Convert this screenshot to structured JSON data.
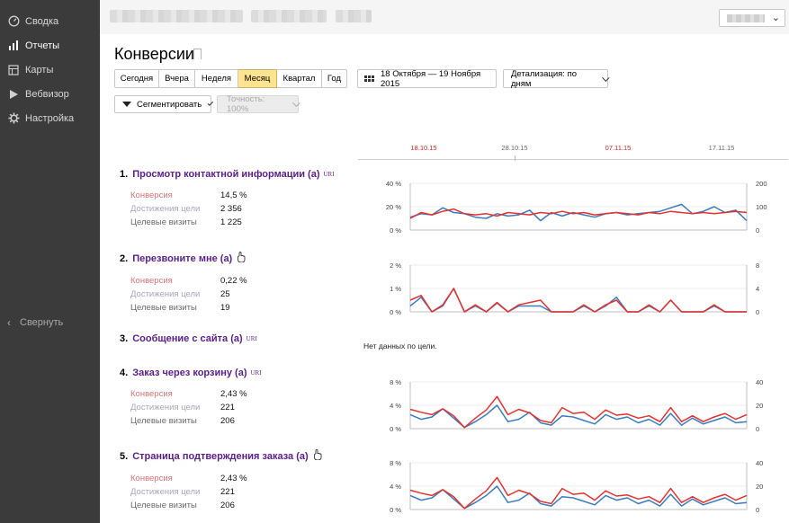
{
  "sidebar": {
    "items": [
      {
        "label": "Сводка",
        "icon": "gauge-icon"
      },
      {
        "label": "Отчеты",
        "icon": "bar-chart-icon",
        "active": true
      },
      {
        "label": "Карты",
        "icon": "map-icon"
      },
      {
        "label": "Вебвизор",
        "icon": "play-icon"
      },
      {
        "label": "Настройка",
        "icon": "gear-icon"
      }
    ],
    "collapse_label": "Свернуть"
  },
  "page": {
    "title": "Конверсии"
  },
  "toolbar": {
    "periods": [
      "Сегодня",
      "Вчера",
      "Неделя",
      "Месяц",
      "Квартал",
      "Год"
    ],
    "active_period": "Месяц",
    "date_range": "18 Октября — 19 Ноября 2015",
    "detail_label": "Детализация: по дням",
    "segment_label": "Сегментировать",
    "accuracy_label": "Точность: 100%"
  },
  "date_axis": {
    "labels": [
      {
        "text": "18.10.15",
        "highlight": true
      },
      {
        "text": "28.10.15",
        "highlight": false
      },
      {
        "text": "07.11.15",
        "highlight": true
      },
      {
        "text": "17.11.15",
        "highlight": false
      }
    ]
  },
  "colors": {
    "sidebar_bg": "#3b3b3b",
    "goal_title": "#5a1e8a",
    "series_conversion": "#e3312d",
    "series_visits": "#3a7bbf",
    "active_period": "#ffe48f"
  },
  "metric_labels": {
    "conversion": "Конверсия",
    "achievements": "Достижения цели",
    "visits": "Целевые визиты"
  },
  "no_data_text": "Нет данных по цели.",
  "goals": [
    {
      "num": "1.",
      "title": "Просмотр контактной информации (а)",
      "tag": "URI",
      "conversion": "14,5 %",
      "achievements": "2 356",
      "visits": "1 225"
    },
    {
      "num": "2.",
      "title": "Перезвоните мне (а)",
      "tag": "click-icon",
      "conversion": "0,22 %",
      "achievements": "25",
      "visits": "19"
    },
    {
      "num": "3.",
      "title": "Сообщение с сайта (а)",
      "tag": "URI"
    },
    {
      "num": "4.",
      "title": "Заказ через корзину (а)",
      "tag": "URI",
      "conversion": "2,43 %",
      "achievements": "221",
      "visits": "206"
    },
    {
      "num": "5.",
      "title": "Страница подтверждения заказа (а)",
      "tag": "click-icon",
      "conversion": "2,43 %",
      "achievements": "221",
      "visits": "206"
    }
  ],
  "chart_data": [
    {
      "type": "line",
      "goal": 1,
      "y_left": {
        "ticks": [
          "0 %",
          "20 %",
          "40 %"
        ],
        "range": [
          0,
          40
        ]
      },
      "y_right": {
        "ticks": [
          "0",
          "100",
          "200"
        ],
        "range": [
          0,
          200
        ]
      },
      "series": [
        {
          "color": "#e3312d",
          "axis": "left",
          "values": [
            10,
            15,
            13,
            16,
            18,
            14,
            13,
            14,
            12,
            15,
            14,
            13,
            15,
            14,
            16,
            14,
            15,
            13,
            14,
            15,
            14,
            13,
            15,
            14,
            16,
            15,
            14,
            15,
            14,
            15,
            16,
            15
          ]
        },
        {
          "color": "#3a7bbf",
          "axis": "right",
          "values": [
            55,
            70,
            65,
            95,
            75,
            70,
            55,
            50,
            70,
            60,
            65,
            85,
            40,
            75,
            60,
            75,
            65,
            55,
            70,
            75,
            65,
            70,
            75,
            80,
            95,
            110,
            70,
            80,
            100,
            75,
            85,
            40
          ]
        }
      ]
    },
    {
      "type": "line",
      "goal": 2,
      "y_left": {
        "ticks": [
          "0 %",
          "1 %",
          "2 %"
        ],
        "range": [
          0,
          2
        ]
      },
      "y_right": {
        "ticks": [
          "0",
          "4",
          "8"
        ],
        "range": [
          0,
          8
        ]
      },
      "series": [
        {
          "color": "#e3312d",
          "axis": "left",
          "values": [
            0.5,
            0.7,
            0,
            0.3,
            1.0,
            0,
            0.3,
            0,
            0.4,
            0,
            0.3,
            0.4,
            0.5,
            0,
            0,
            0,
            0.3,
            0,
            0.3,
            0.5,
            0,
            0,
            0.3,
            0,
            0.5,
            0,
            0,
            0,
            0.3,
            0,
            0,
            0
          ]
        },
        {
          "color": "#3a7bbf",
          "axis": "right",
          "values": [
            1,
            2.5,
            0,
            1,
            4,
            0,
            1,
            0,
            1.5,
            0,
            1,
            1,
            1,
            0,
            0,
            0,
            1,
            0,
            1,
            2.5,
            0,
            0,
            1,
            0,
            2,
            0,
            0,
            0,
            1,
            0,
            0,
            0
          ]
        }
      ]
    },
    {
      "type": "line",
      "goal": 4,
      "y_left": {
        "ticks": [
          "0 %",
          "4 %",
          "8 %"
        ],
        "range": [
          0,
          8
        ]
      },
      "y_right": {
        "ticks": [
          "0",
          "20",
          "40"
        ],
        "range": [
          0,
          40
        ]
      },
      "series": [
        {
          "color": "#e3312d",
          "axis": "left",
          "values": [
            3.3,
            2.8,
            2.4,
            3.4,
            2.2,
            0.2,
            1.8,
            3.2,
            5.5,
            2.4,
            3.3,
            2.7,
            1.4,
            1.0,
            3.6,
            2.6,
            2.8,
            1.6,
            3.2,
            2.3,
            2.5,
            1.8,
            2.2,
            1.2,
            3.6,
            1.2,
            2.2,
            1.2,
            2.0,
            2.6,
            1.6,
            2.4
          ]
        },
        {
          "color": "#3a7bbf",
          "axis": "right",
          "values": [
            12,
            8,
            10,
            17,
            9,
            1,
            6,
            12,
            20,
            6,
            8,
            14,
            5,
            3,
            11,
            10,
            7,
            4,
            12,
            8,
            10,
            5,
            8,
            3,
            13,
            3,
            9,
            4,
            7,
            10,
            5,
            6
          ]
        }
      ]
    },
    {
      "type": "line",
      "goal": 5,
      "y_left": {
        "ticks": [
          "0 %",
          "4 %",
          "8 %"
        ],
        "range": [
          0,
          8
        ]
      },
      "y_right": {
        "ticks": [
          "0",
          "20",
          "40"
        ],
        "range": [
          0,
          40
        ]
      },
      "series": [
        {
          "color": "#e3312d",
          "axis": "left",
          "values": [
            3.3,
            2.8,
            2.4,
            3.4,
            2.2,
            0.2,
            1.8,
            3.2,
            5.5,
            2.4,
            3.3,
            2.7,
            1.4,
            1.0,
            3.6,
            2.6,
            2.8,
            1.6,
            3.2,
            2.3,
            2.5,
            1.8,
            2.2,
            1.2,
            3.6,
            1.2,
            2.2,
            1.2,
            2.0,
            2.6,
            1.6,
            2.4
          ]
        },
        {
          "color": "#3a7bbf",
          "axis": "right",
          "values": [
            12,
            8,
            10,
            17,
            9,
            1,
            6,
            12,
            20,
            6,
            8,
            14,
            5,
            3,
            11,
            10,
            7,
            4,
            12,
            8,
            10,
            5,
            8,
            3,
            13,
            3,
            9,
            4,
            7,
            10,
            5,
            6
          ]
        }
      ]
    }
  ]
}
